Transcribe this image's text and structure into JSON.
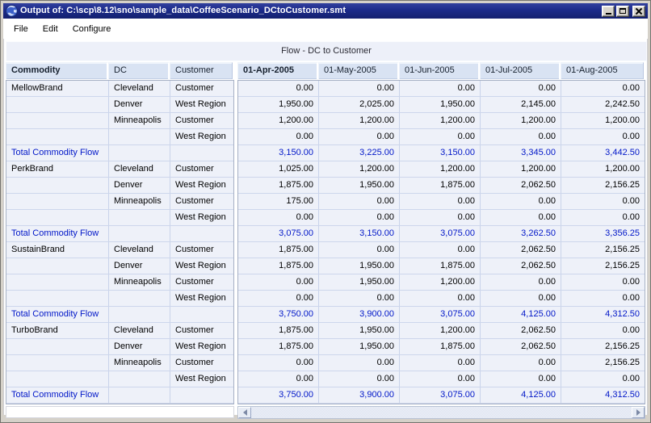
{
  "window": {
    "title": "Output of: C:\\scp\\8.12\\sno\\sample_data\\CoffeeScenario_DCtoCustomer.smt",
    "controls": {
      "minimize": "minimize",
      "maximize": "maximize",
      "close": "close"
    }
  },
  "menu": {
    "items": [
      "File",
      "Edit",
      "Configure"
    ]
  },
  "view": {
    "title": "Flow - DC to Customer"
  },
  "colors": {
    "titlebar": "#1c2b8a",
    "header_bg": "#d9e3f3",
    "row_bg": "#eef1f9",
    "grid_line": "#c9d3ea",
    "total_text": "#0016c8",
    "band_bg": "#edf0f9",
    "frame": "#d5d1c9"
  },
  "table": {
    "left_headers": [
      "Commodity",
      "DC",
      "Customer"
    ],
    "date_headers": [
      "01-Apr-2005",
      "01-May-2005",
      "01-Jun-2005",
      "01-Jul-2005",
      "01-Aug-2005"
    ],
    "total_label": "Total Commodity Flow",
    "rows": [
      {
        "commodity": "MellowBrand",
        "dc": "Cleveland",
        "customer": "Customer",
        "values": [
          "0.00",
          "0.00",
          "0.00",
          "0.00",
          "0.00"
        ]
      },
      {
        "commodity": "",
        "dc": "Denver",
        "customer": "West Region",
        "values": [
          "1,950.00",
          "2,025.00",
          "1,950.00",
          "2,145.00",
          "2,242.50"
        ]
      },
      {
        "commodity": "",
        "dc": "Minneapolis",
        "customer": "Customer",
        "values": [
          "1,200.00",
          "1,200.00",
          "1,200.00",
          "1,200.00",
          "1,200.00"
        ]
      },
      {
        "commodity": "",
        "dc": "",
        "customer": "West Region",
        "values": [
          "0.00",
          "0.00",
          "0.00",
          "0.00",
          "0.00"
        ]
      },
      {
        "total": true,
        "values": [
          "3,150.00",
          "3,225.00",
          "3,150.00",
          "3,345.00",
          "3,442.50"
        ]
      },
      {
        "commodity": "PerkBrand",
        "dc": "Cleveland",
        "customer": "Customer",
        "values": [
          "1,025.00",
          "1,200.00",
          "1,200.00",
          "1,200.00",
          "1,200.00"
        ]
      },
      {
        "commodity": "",
        "dc": "Denver",
        "customer": "West Region",
        "values": [
          "1,875.00",
          "1,950.00",
          "1,875.00",
          "2,062.50",
          "2,156.25"
        ]
      },
      {
        "commodity": "",
        "dc": "Minneapolis",
        "customer": "Customer",
        "values": [
          "175.00",
          "0.00",
          "0.00",
          "0.00",
          "0.00"
        ]
      },
      {
        "commodity": "",
        "dc": "",
        "customer": "West Region",
        "values": [
          "0.00",
          "0.00",
          "0.00",
          "0.00",
          "0.00"
        ]
      },
      {
        "total": true,
        "values": [
          "3,075.00",
          "3,150.00",
          "3,075.00",
          "3,262.50",
          "3,356.25"
        ]
      },
      {
        "commodity": "SustainBrand",
        "dc": "Cleveland",
        "customer": "Customer",
        "values": [
          "1,875.00",
          "0.00",
          "0.00",
          "2,062.50",
          "2,156.25"
        ]
      },
      {
        "commodity": "",
        "dc": "Denver",
        "customer": "West Region",
        "values": [
          "1,875.00",
          "1,950.00",
          "1,875.00",
          "2,062.50",
          "2,156.25"
        ]
      },
      {
        "commodity": "",
        "dc": "Minneapolis",
        "customer": "Customer",
        "values": [
          "0.00",
          "1,950.00",
          "1,200.00",
          "0.00",
          "0.00"
        ]
      },
      {
        "commodity": "",
        "dc": "",
        "customer": "West Region",
        "values": [
          "0.00",
          "0.00",
          "0.00",
          "0.00",
          "0.00"
        ]
      },
      {
        "total": true,
        "values": [
          "3,750.00",
          "3,900.00",
          "3,075.00",
          "4,125.00",
          "4,312.50"
        ]
      },
      {
        "commodity": "TurboBrand",
        "dc": "Cleveland",
        "customer": "Customer",
        "values": [
          "1,875.00",
          "1,950.00",
          "1,200.00",
          "2,062.50",
          "0.00"
        ]
      },
      {
        "commodity": "",
        "dc": "Denver",
        "customer": "West Region",
        "values": [
          "1,875.00",
          "1,950.00",
          "1,875.00",
          "2,062.50",
          "2,156.25"
        ]
      },
      {
        "commodity": "",
        "dc": "Minneapolis",
        "customer": "Customer",
        "values": [
          "0.00",
          "0.00",
          "0.00",
          "0.00",
          "2,156.25"
        ]
      },
      {
        "commodity": "",
        "dc": "",
        "customer": "West Region",
        "values": [
          "0.00",
          "0.00",
          "0.00",
          "0.00",
          "0.00"
        ]
      },
      {
        "total": true,
        "values": [
          "3,750.00",
          "3,900.00",
          "3,075.00",
          "4,125.00",
          "4,312.50"
        ]
      }
    ]
  },
  "icons": [
    "globe-icon",
    "minimize-icon",
    "maximize-icon",
    "close-icon",
    "scroll-left-icon",
    "scroll-right-icon"
  ]
}
